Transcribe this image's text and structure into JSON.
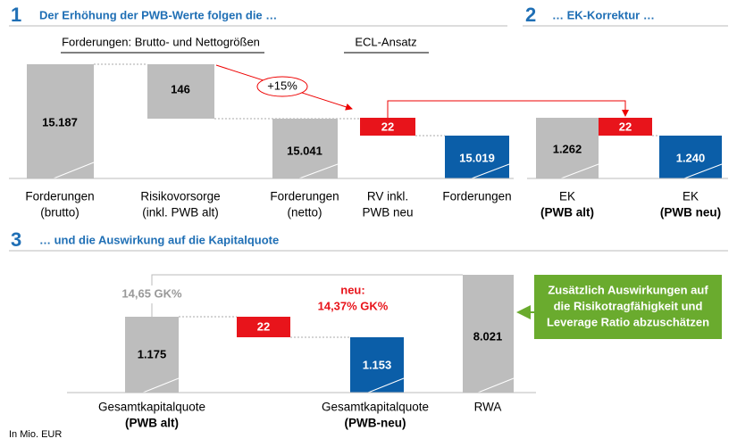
{
  "sections": [
    {
      "number": "1",
      "title": "Der Erhöhung der PWB-Werte folgen die …"
    },
    {
      "number": "2",
      "title": "… EK-Korrektur …"
    },
    {
      "number": "3",
      "title": "… und die Auswirkung auf die Kapitalquote"
    }
  ],
  "brackets": [
    "Forderungen: Brutto- und Nettogrößen",
    "ECL-Ansatz"
  ],
  "growth_label": "+15%",
  "section1_bars": [
    {
      "value": "15.187",
      "label": [
        "Forderungen",
        "(brutto)"
      ]
    },
    {
      "value": "146",
      "label": [
        "Risikovorsorge",
        "(inkl. PWB alt)"
      ]
    },
    {
      "value": "15.041",
      "label": [
        "Forderungen",
        "(netto)"
      ]
    },
    {
      "value": "22",
      "label": [
        "RV inkl.",
        "PWB neu"
      ]
    },
    {
      "value": "15.019",
      "label": [
        "Forderungen"
      ]
    }
  ],
  "section2_bars": [
    {
      "value": "1.262",
      "label": [
        "EK",
        "(PWB alt)"
      ]
    },
    {
      "value": "22"
    },
    {
      "value": "1.240",
      "label": [
        "EK",
        "(PWB neu)"
      ]
    }
  ],
  "section3_bars": [
    {
      "value": "1.175",
      "label": [
        "Gesamtkapitalquote",
        "(PWB alt)"
      ]
    },
    {
      "value": "22"
    },
    {
      "value": "1.153",
      "label": [
        "Gesamtkapitalquote",
        "(PWB-neu)"
      ]
    },
    {
      "value": "8.021",
      "label": [
        "RWA"
      ]
    }
  ],
  "old_ratio": "14,65 GK%",
  "new_ratio": [
    "neu:",
    "14,37% GK%"
  ],
  "callout": [
    "Zusätzlich Auswirkungen auf",
    "die Risikotragfähigkeit und",
    "Leverage Ratio abzuschätzen"
  ],
  "footnote": "In Mio. EUR"
}
